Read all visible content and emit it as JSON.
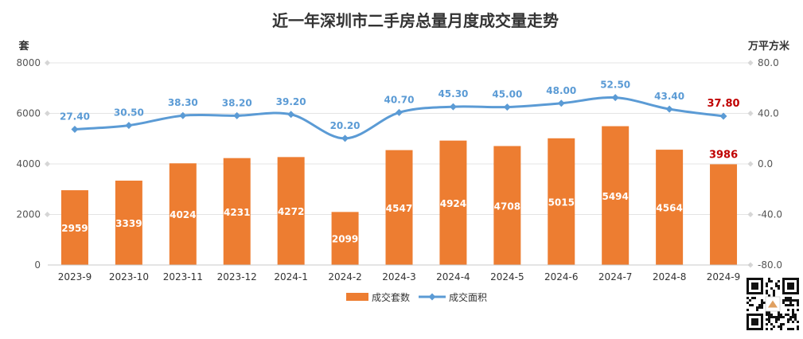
{
  "chart_data": {
    "type": "bar",
    "title": "近一年深圳市二手房总量月度成交量走势",
    "y_left_label": "套",
    "y_right_label": "万平方米",
    "y_left_ticks": [
      "0",
      "2000",
      "4000",
      "6000",
      "8000"
    ],
    "y_right_ticks": [
      "-80.0",
      "-40.0",
      "0.0",
      "40.0",
      "80.0"
    ],
    "ylim_left": [
      0,
      8000
    ],
    "ylim_right": [
      -80,
      80
    ],
    "categories": [
      "2023-9",
      "2023-10",
      "2023-11",
      "2023-12",
      "2024-1",
      "2024-2",
      "2024-3",
      "2024-4",
      "2024-5",
      "2024-6",
      "2024-7",
      "2024-8",
      "2024-9"
    ],
    "series": [
      {
        "name": "成交套数",
        "type": "bar",
        "axis": "left",
        "color": "#ED7D31",
        "values": [
          2959,
          3339,
          4024,
          4231,
          4272,
          2099,
          4547,
          4924,
          4708,
          5015,
          5494,
          4564,
          3986
        ],
        "labels": [
          "2959",
          "3339",
          "4024",
          "4231",
          "4272",
          "2099",
          "4547",
          "4924",
          "4708",
          "5015",
          "5494",
          "4564",
          "3986"
        ]
      },
      {
        "name": "成交面积",
        "type": "line",
        "axis": "right",
        "color": "#5B9BD5",
        "values": [
          27.4,
          30.5,
          38.3,
          38.2,
          39.2,
          20.2,
          40.7,
          45.3,
          45.0,
          48.0,
          52.5,
          43.4,
          37.8
        ],
        "labels": [
          "27.40",
          "30.50",
          "38.30",
          "38.20",
          "39.20",
          "20.20",
          "40.70",
          "45.30",
          "45.00",
          "48.00",
          "52.50",
          "43.40",
          "37.80"
        ]
      }
    ],
    "highlight_color": "#C00000",
    "legend_position": "bottom",
    "grid": true
  },
  "qr_code": {
    "icon": "qr-code-icon"
  }
}
